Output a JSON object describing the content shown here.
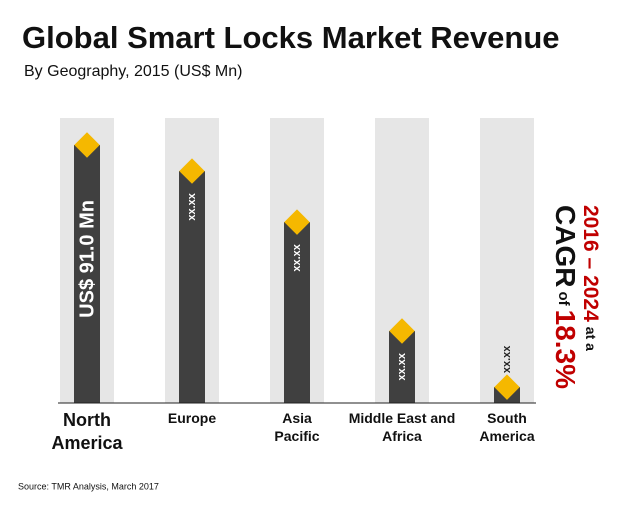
{
  "chart_data": {
    "type": "bar",
    "title": "Global Smart Locks Market Revenue",
    "subtitle": "By Geography, 2015 (US$ Mn)",
    "categories": [
      "North America",
      "Europe",
      "Asia Pacific",
      "Middle East and Africa",
      "South America"
    ],
    "values": [
      91.0,
      81.8,
      63.8,
      25.4,
      5.6
    ],
    "value_labels": [
      "US$ 91.0 Mn",
      "xx.xx",
      "xx.xx",
      "xx.xx",
      "xx.xx"
    ],
    "color": "#404040",
    "marker_color": "#f5b800",
    "cagr": {
      "period": "2016 – 2024",
      "connector": "at a",
      "label": "CAGR",
      "of": "of",
      "value": "18.3%"
    },
    "source": "Source: TMR Analysis, March 2017"
  }
}
